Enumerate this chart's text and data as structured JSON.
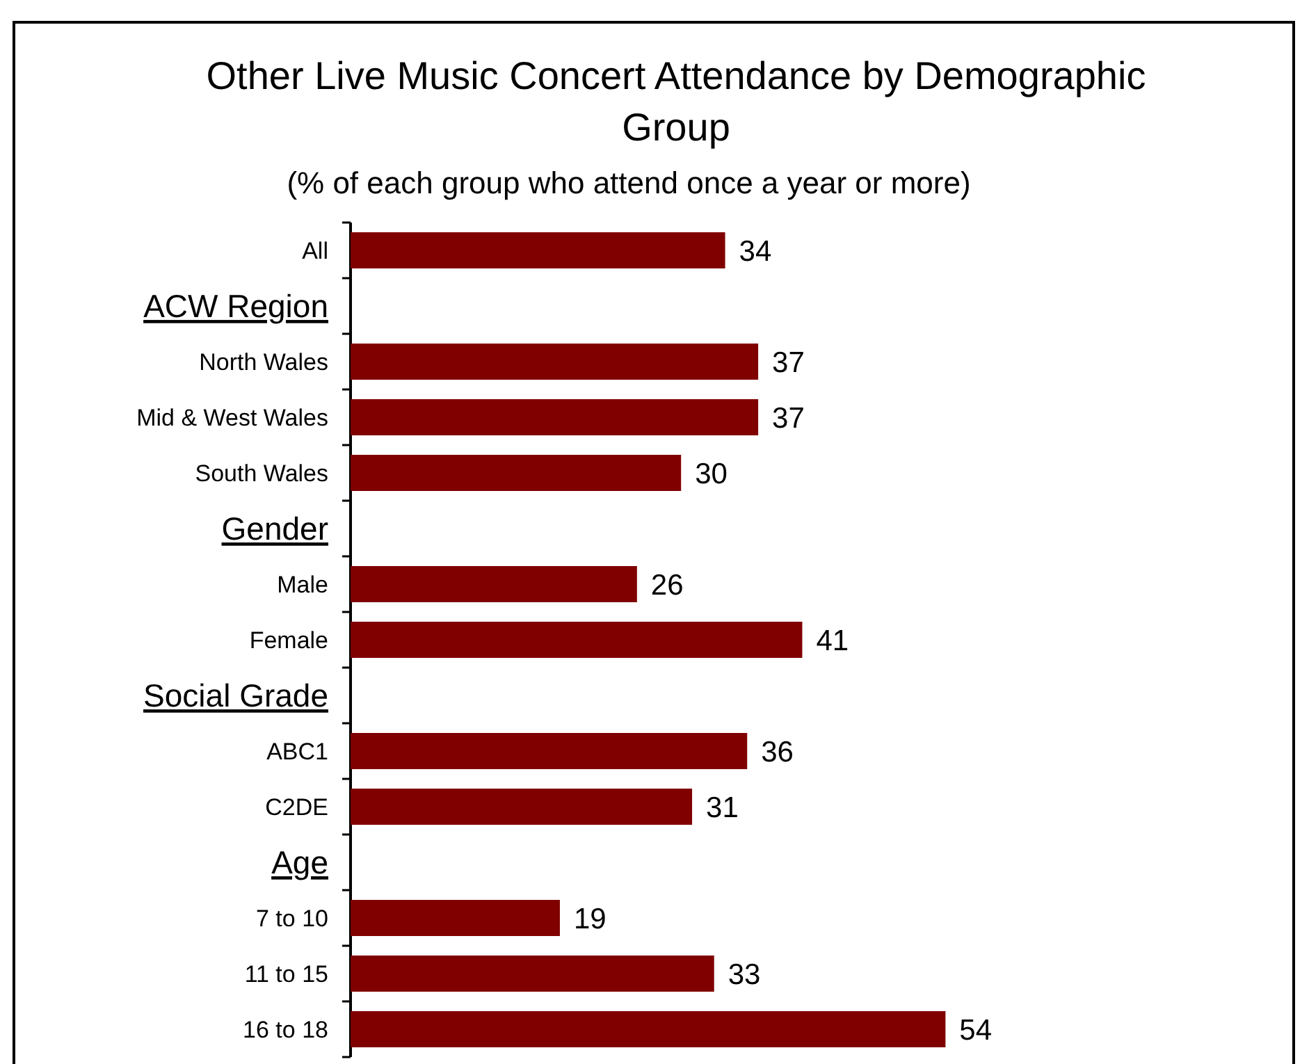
{
  "chart_data": {
    "type": "bar",
    "orientation": "horizontal",
    "title": "Other Live Music Concert Attendance by Demographic Group",
    "subtitle": "(% of each group who attend once a year or more)",
    "categories": [
      "All",
      "ACW Region",
      "North Wales",
      "Mid & West Wales",
      "South Wales",
      "Gender",
      "Male",
      "Female",
      "Social Grade",
      "ABC1",
      "C2DE",
      "Age",
      "7 to 10",
      "11 to 15",
      "16 to 18"
    ],
    "values": [
      34,
      null,
      37,
      37,
      30,
      null,
      26,
      41,
      null,
      36,
      31,
      null,
      19,
      33,
      54
    ],
    "color": "#800000",
    "data_labels": true
  }
}
